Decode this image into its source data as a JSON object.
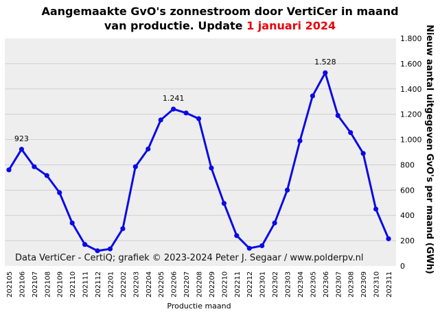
{
  "chart_data": {
    "type": "line",
    "title_line1": "Aangemaakte GvO's zonnestroom door VertiCer in maand",
    "title_line2_prefix": "van productie. Update ",
    "title_line2_highlight": "1 januari 2024",
    "xlabel": "Productie maand",
    "ylabel": "Nieuw aantal uitgegeven GvO's per maand (GWh)",
    "watermark": "Data VertiCer - CertiQ; grafiek © 2023-2024  Peter J. Segaar / www.polderpv.nl",
    "ylim": [
      0,
      1800
    ],
    "yticks": [
      0,
      200,
      400,
      600,
      800,
      1000,
      1200,
      1400,
      1600,
      1800
    ],
    "ytick_labels": [
      "0",
      "200",
      "400",
      "600",
      "800",
      "1.000",
      "1.200",
      "1.400",
      "1.600",
      "1.800"
    ],
    "categories": [
      "202105",
      "202106",
      "202107",
      "202108",
      "202109",
      "202110",
      "202111",
      "202112",
      "202201",
      "202202",
      "202203",
      "202204",
      "202205",
      "202206",
      "202207",
      "202208",
      "202209",
      "202210",
      "202211",
      "202212",
      "202301",
      "202302",
      "202303",
      "202304",
      "202305",
      "202306",
      "202307",
      "202308",
      "202309",
      "202310",
      "202311"
    ],
    "series": [
      {
        "values": [
          760,
          923,
          785,
          715,
          580,
          340,
          170,
          120,
          135,
          295,
          785,
          925,
          1155,
          1241,
          1210,
          1165,
          775,
          495,
          240,
          140,
          160,
          340,
          600,
          990,
          1345,
          1528,
          1190,
          1055,
          890,
          450,
          215
        ]
      }
    ],
    "annotations": [
      {
        "index": 1,
        "text": "923"
      },
      {
        "index": 13,
        "text": "1.241"
      },
      {
        "index": 25,
        "text": "1.528"
      }
    ],
    "grid": true,
    "colors": {
      "line": "#0a0ae6",
      "plot_bg": "#eeeeee",
      "grid": "#cfcfcf",
      "highlight": "#e8000b"
    }
  }
}
